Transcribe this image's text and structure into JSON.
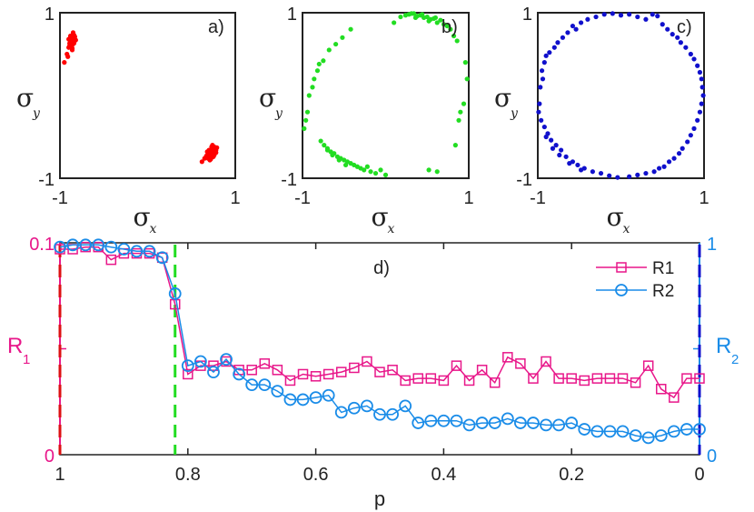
{
  "chart_data": [
    {
      "type": "scatter",
      "panel_label": "a)",
      "xlabel": "σ",
      "xlabel_sub": "x",
      "ylabel": "σ",
      "ylabel_sub": "y",
      "xlim": [
        -1,
        1
      ],
      "ylim": [
        -1,
        1
      ],
      "x_ticks": [
        "-1",
        "1"
      ],
      "y_ticks": [
        "-1",
        "1"
      ],
      "color": "#ff0000",
      "x": [
        -0.9,
        -0.88,
        -0.86,
        -0.84,
        -0.83,
        -0.87,
        -0.89,
        -0.85,
        -0.82,
        -0.86,
        -0.88,
        -0.84,
        -0.87,
        -0.85,
        -0.83,
        -0.89,
        -0.86,
        -0.84,
        -0.88,
        -0.85,
        -0.92,
        -0.91,
        -0.95,
        -0.87,
        -0.86,
        -0.9,
        -0.84,
        -0.88,
        0.68,
        0.7,
        0.72,
        0.74,
        0.76,
        0.78,
        0.71,
        0.73,
        0.75,
        0.77,
        0.79,
        0.7,
        0.72,
        0.74,
        0.76,
        0.73,
        0.75,
        0.77,
        0.69,
        0.71,
        0.74,
        0.62,
        0.65,
        0.67,
        0.72,
        0.75,
        0.78,
        0.7,
        0.73,
        0.76
      ],
      "y": [
        0.68,
        0.7,
        0.72,
        0.69,
        0.71,
        0.66,
        0.63,
        0.65,
        0.67,
        0.61,
        0.59,
        0.63,
        0.7,
        0.74,
        0.68,
        0.6,
        0.57,
        0.64,
        0.72,
        0.76,
        0.5,
        0.47,
        0.4,
        0.62,
        0.55,
        0.58,
        0.73,
        0.66,
        -0.68,
        -0.7,
        -0.66,
        -0.64,
        -0.62,
        -0.66,
        -0.72,
        -0.68,
        -0.65,
        -0.69,
        -0.63,
        -0.74,
        -0.71,
        -0.67,
        -0.7,
        -0.62,
        -0.72,
        -0.64,
        -0.76,
        -0.78,
        -0.6,
        -0.8,
        -0.76,
        -0.73,
        -0.77,
        -0.74,
        -0.69,
        -0.66,
        -0.69,
        -0.72
      ]
    },
    {
      "type": "scatter",
      "panel_label": "b)",
      "xlabel": "σ",
      "xlabel_sub": "x",
      "ylabel": "σ",
      "ylabel_sub": "y",
      "xlim": [
        -1,
        1
      ],
      "ylim": [
        -1,
        1
      ],
      "x_ticks": [
        "-1",
        "1"
      ],
      "y_ticks": [
        "-1",
        "1"
      ],
      "color": "#22dd22",
      "x": [
        0.28,
        0.34,
        0.38,
        0.42,
        0.46,
        0.5,
        0.54,
        0.58,
        0.62,
        0.66,
        0.7,
        0.74,
        0.78,
        0.82,
        0.86,
        0.1,
        0.18,
        0.24,
        0.31,
        0.36,
        0.44,
        0.52,
        0.6,
        -0.42,
        -0.52,
        -0.6,
        -0.68,
        -0.75,
        -0.82,
        -0.88,
        -0.94,
        -0.98,
        -0.96,
        -0.92,
        -0.86,
        -0.8,
        -0.78,
        -0.74,
        -0.7,
        -0.66,
        -0.62,
        -0.58,
        -0.54,
        -0.5,
        -0.46,
        -0.42,
        -0.38,
        -0.34,
        -0.3,
        -0.26,
        -0.22,
        -0.18,
        -0.12,
        -0.06,
        0.0,
        -0.7,
        -0.64,
        -0.56,
        -0.48,
        0.52,
        0.62,
        0.88,
        0.94,
        0.98,
        0.96,
        0.9,
        0.84
      ],
      "y": [
        0.98,
        0.99,
        0.96,
        0.97,
        0.94,
        0.95,
        0.92,
        0.93,
        0.88,
        0.91,
        0.86,
        0.84,
        0.8,
        0.72,
        0.66,
        0.88,
        0.95,
        0.97,
        0.99,
        0.94,
        0.98,
        0.9,
        0.94,
        0.8,
        0.7,
        0.62,
        0.55,
        0.42,
        0.3,
        0.1,
        -0.2,
        -0.4,
        -0.3,
        0.0,
        0.2,
        0.38,
        -0.55,
        -0.6,
        -0.64,
        -0.68,
        -0.7,
        -0.74,
        -0.76,
        -0.78,
        -0.8,
        -0.82,
        -0.84,
        -0.86,
        -0.88,
        -0.9,
        -0.86,
        -0.92,
        -0.94,
        -0.9,
        -0.96,
        -0.66,
        -0.72,
        -0.78,
        -0.84,
        -0.9,
        -0.92,
        -0.3,
        -0.1,
        0.2,
        0.4,
        -0.2,
        -0.6
      ]
    },
    {
      "type": "scatter",
      "panel_label": "c)",
      "xlabel": "σ",
      "xlabel_sub": "x",
      "ylabel": "σ",
      "ylabel_sub": "y",
      "xlim": [
        -1,
        1
      ],
      "ylim": [
        -1,
        1
      ],
      "x_ticks": [
        "-1",
        "1"
      ],
      "y_ticks": [
        "-1",
        "1"
      ],
      "color": "#1010cc",
      "x": [
        -0.95,
        -0.92,
        -0.9,
        -0.86,
        -0.8,
        -0.76,
        -0.7,
        -0.64,
        -0.58,
        -0.54,
        -0.48,
        -0.4,
        -0.3,
        -0.2,
        -0.1,
        0.0,
        0.1,
        0.2,
        0.3,
        0.38,
        0.44,
        0.5,
        0.56,
        0.62,
        0.68,
        0.72,
        0.78,
        0.84,
        0.88,
        0.92,
        0.95,
        0.97,
        0.98,
        0.99,
        0.97,
        0.95,
        0.92,
        0.88,
        0.84,
        0.8,
        0.74,
        0.7,
        0.64,
        0.58,
        0.52,
        0.46,
        0.4,
        0.3,
        0.2,
        0.1,
        -0.04,
        -0.14,
        -0.24,
        -0.34,
        -0.44,
        -0.52,
        -0.58,
        -0.66,
        -0.72,
        -0.78,
        -0.84,
        -0.88,
        -0.92,
        -0.96,
        -0.99,
        -0.98,
        -0.97,
        -0.94,
        -0.9,
        -0.82,
        -0.74,
        -0.62,
        -0.48
      ],
      "y": [
        0.3,
        0.4,
        0.48,
        0.52,
        0.58,
        0.64,
        0.7,
        0.76,
        0.84,
        0.8,
        0.88,
        0.92,
        0.95,
        0.98,
        0.99,
        0.97,
        0.98,
        0.95,
        0.92,
        0.98,
        0.96,
        0.86,
        0.8,
        0.74,
        0.7,
        0.64,
        0.58,
        0.5,
        0.44,
        0.36,
        0.28,
        0.2,
        0.1,
        0.0,
        -0.1,
        -0.2,
        -0.3,
        -0.4,
        -0.48,
        -0.56,
        -0.64,
        -0.7,
        -0.76,
        -0.8,
        -0.86,
        -0.88,
        -0.92,
        -0.94,
        -0.96,
        -0.98,
        -0.99,
        -0.97,
        -0.94,
        -0.92,
        -0.88,
        -0.84,
        -0.8,
        -0.74,
        -0.66,
        -0.6,
        -0.54,
        -0.46,
        -0.38,
        -0.3,
        -0.2,
        -0.1,
        0.1,
        0.2,
        -0.5,
        -0.64,
        -0.72,
        -0.82,
        -0.9
      ]
    },
    {
      "type": "line",
      "panel_label": "d)",
      "xlabel": "p",
      "ylabel_left": "R",
      "ylabel_left_sub": "1",
      "ylabel_right": "R",
      "ylabel_right_sub": "2",
      "xlim": [
        1,
        0
      ],
      "ylim_left": [
        0,
        0.1
      ],
      "ylim_right": [
        0,
        1
      ],
      "x_ticks": [
        "1",
        "0.8",
        "0.6",
        "0.4",
        "0.2",
        "0"
      ],
      "y_left_ticks": [
        "0",
        "0.1"
      ],
      "y_right_ticks": [
        "0",
        "1"
      ],
      "vertical_lines": [
        {
          "x": 1.0,
          "color": "#dd1111"
        },
        {
          "x": 0.82,
          "color": "#22dd22"
        },
        {
          "x": 0.0,
          "color": "#1010cc"
        }
      ],
      "x": [
        1.0,
        0.98,
        0.96,
        0.94,
        0.92,
        0.9,
        0.88,
        0.86,
        0.84,
        0.82,
        0.8,
        0.78,
        0.76,
        0.74,
        0.72,
        0.7,
        0.68,
        0.66,
        0.64,
        0.62,
        0.6,
        0.58,
        0.56,
        0.54,
        0.52,
        0.5,
        0.48,
        0.46,
        0.44,
        0.42,
        0.4,
        0.38,
        0.36,
        0.34,
        0.32,
        0.3,
        0.28,
        0.26,
        0.24,
        0.22,
        0.2,
        0.18,
        0.16,
        0.14,
        0.12,
        0.1,
        0.08,
        0.06,
        0.04,
        0.02,
        0.0
      ],
      "series": [
        {
          "name": "R1",
          "axis": "left",
          "color": "#e8178a",
          "marker": "square",
          "values": [
            0.097,
            0.097,
            0.098,
            0.098,
            0.092,
            0.095,
            0.095,
            0.095,
            0.093,
            0.071,
            0.038,
            0.042,
            0.042,
            0.044,
            0.04,
            0.04,
            0.043,
            0.04,
            0.035,
            0.038,
            0.037,
            0.038,
            0.039,
            0.041,
            0.044,
            0.039,
            0.04,
            0.035,
            0.036,
            0.036,
            0.035,
            0.042,
            0.035,
            0.04,
            0.034,
            0.046,
            0.043,
            0.036,
            0.044,
            0.036,
            0.036,
            0.035,
            0.036,
            0.036,
            0.036,
            0.034,
            0.042,
            0.031,
            0.027,
            0.036,
            0.036
          ]
        },
        {
          "name": "R2",
          "axis": "right",
          "color": "#1a8ce8",
          "marker": "circle",
          "values": [
            0.98,
            0.99,
            0.99,
            0.99,
            0.98,
            0.97,
            0.96,
            0.96,
            0.93,
            0.76,
            0.42,
            0.44,
            0.39,
            0.45,
            0.38,
            0.33,
            0.33,
            0.3,
            0.26,
            0.26,
            0.27,
            0.28,
            0.2,
            0.22,
            0.23,
            0.19,
            0.19,
            0.23,
            0.15,
            0.16,
            0.16,
            0.16,
            0.14,
            0.15,
            0.15,
            0.17,
            0.15,
            0.15,
            0.14,
            0.14,
            0.15,
            0.12,
            0.11,
            0.11,
            0.11,
            0.09,
            0.08,
            0.09,
            0.11,
            0.12,
            0.12
          ]
        }
      ],
      "legend": {
        "position": "top-right"
      }
    }
  ]
}
